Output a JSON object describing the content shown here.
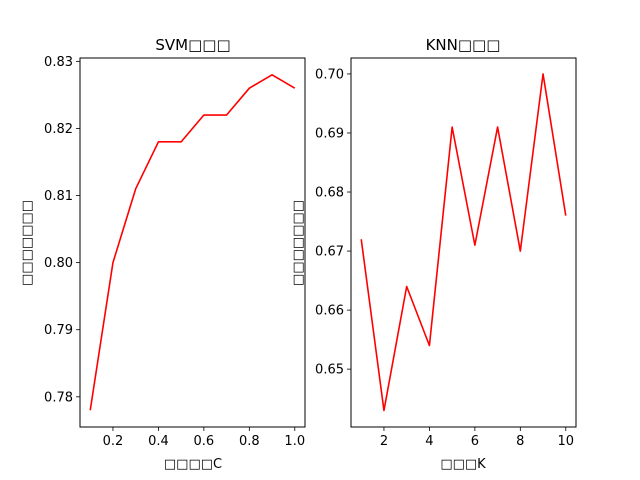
{
  "chart_data": [
    {
      "type": "line",
      "title": "SVM□□□",
      "xlabel": "□□□□C",
      "ylabel": "□□□□□□□",
      "x": [
        0.1,
        0.2,
        0.3,
        0.4,
        0.5,
        0.6,
        0.7,
        0.8,
        0.9,
        1.0
      ],
      "series": [
        {
          "values": [
            0.778,
            0.8,
            0.811,
            0.818,
            0.818,
            0.822,
            0.822,
            0.826,
            0.828,
            0.826
          ]
        }
      ],
      "xlim": [
        0.055,
        1.045
      ],
      "ylim": [
        0.7755,
        0.8305
      ],
      "xticks": [
        0.2,
        0.4,
        0.6,
        0.8,
        1.0
      ],
      "xticklabels": [
        "0.2",
        "0.4",
        "0.6",
        "0.8",
        "1.0"
      ],
      "yticks": [
        0.78,
        0.79,
        0.8,
        0.81,
        0.82,
        0.83
      ],
      "yticklabels": [
        "0.78",
        "0.79",
        "0.80",
        "0.81",
        "0.82",
        "0.83"
      ],
      "color": "#ff0000",
      "grid": false
    },
    {
      "type": "line",
      "title": "KNN□□□",
      "xlabel": "□□□K",
      "ylabel": "□□□□□□□",
      "x": [
        1,
        2,
        3,
        4,
        5,
        6,
        7,
        8,
        9,
        10
      ],
      "series": [
        {
          "values": [
            0.672,
            0.643,
            0.664,
            0.654,
            0.691,
            0.671,
            0.691,
            0.67,
            0.7,
            0.676
          ]
        }
      ],
      "xlim": [
        0.55,
        10.45
      ],
      "ylim": [
        0.6402,
        0.7027
      ],
      "xticks": [
        2,
        4,
        6,
        8,
        10
      ],
      "xticklabels": [
        "2",
        "4",
        "6",
        "8",
        "10"
      ],
      "yticks": [
        0.65,
        0.66,
        0.67,
        0.68,
        0.69,
        0.7
      ],
      "yticklabels": [
        "0.65",
        "0.66",
        "0.67",
        "0.68",
        "0.69",
        "0.70"
      ],
      "color": "#ff0000",
      "grid": false
    }
  ]
}
